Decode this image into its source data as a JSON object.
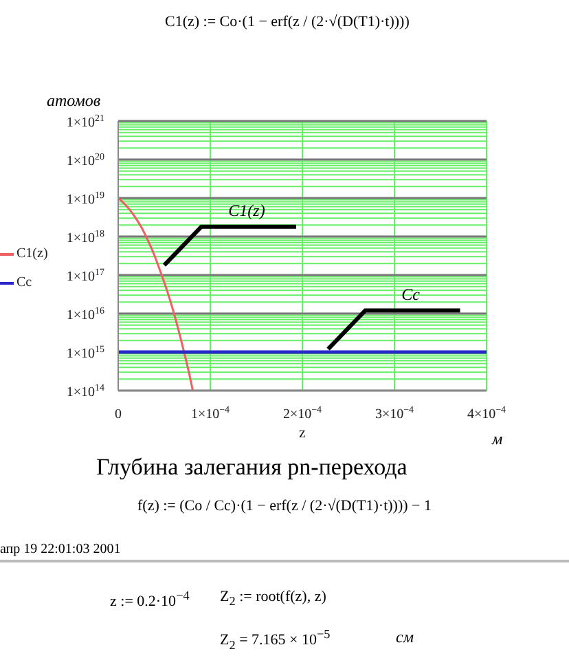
{
  "chart_data": {
    "type": "line",
    "title": "Глубина залегания pn-перехода",
    "xlabel": "z",
    "ylabel": "атомов",
    "annotations": [
      "C1(z) := Co·(1 − erf(z / (2·√(D(T1)·t))))",
      "м",
      "f(z) := (Co / Cc)·(1 − erf(z / (2·√(D(T1)·t)))) − 1",
      "апр 19 22:01:03 2001",
      "z := 0.2·10$^{−4}$",
      "Z$_{2}$ := root(f(z), z)",
      "Z$_{2}$ = 7.165 × 10$^{−5}$",
      "см",
      {
        "text": "C1(z)",
        "x": 5e-05,
        "y": 1.8e+17
      },
      {
        "text": "Cc",
        "x": 0.000228,
        "y": 1200000000000000.0
      }
    ],
    "series": [
      {
        "name": "C1(z)",
        "color": "#f06060",
        "x": [
          0,
          6.5e-06,
          1.3e-05,
          1.95e-05,
          2.6e-05,
          3.25e-05,
          3.9e-05,
          4.55e-05,
          5.2e-05,
          5.85e-05,
          6.5e-05,
          7.15e-05,
          7.8e-05,
          8.1e-05
        ],
        "values": [
          1e+19,
          7.2e+18,
          4.8e+18,
          2.9e+18,
          1.6e+18,
          7.7e+17,
          3.4e+17,
          1.3e+17,
          4.7e+16,
          1.5e+16,
          4100000000000000.0,
          1000000000000000.0,
          220000000000000.0,
          100000000000000.0
        ]
      },
      {
        "name": "Cc",
        "color": "#2828c8",
        "x": [
          0,
          0.0004
        ],
        "values": [
          1000000000000000.0,
          1000000000000000.0
        ]
      }
    ],
    "log": "y",
    "xlim": [
      0,
      0.0004
    ],
    "ylim": [
      100000000000000.0,
      1e+21
    ],
    "xticks": [
      0,
      {
        "value": 0.0001,
        "label": "1×10$^{−4}$"
      },
      {
        "value": 0.0002,
        "label": "2×10$^{−4}$"
      },
      {
        "value": 0.0003,
        "label": "3×10$^{−4}$"
      },
      {
        "value": 0.0004,
        "label": "4×10$^{−4}$"
      }
    ],
    "yticks": [
      {
        "value": 100000000000000.0,
        "label": "1×10$^{14}$"
      },
      {
        "value": 1000000000000000.0,
        "label": "1×10$^{15}$"
      },
      {
        "value": 1e+16,
        "label": "1×10$^{16}$"
      },
      {
        "value": 1e+17,
        "label": "1×10$^{17}$"
      },
      {
        "value": 1e+18,
        "label": "1×10$^{18}$"
      },
      {
        "value": 1e+19,
        "label": "1×10$^{19}$"
      },
      {
        "value": 1e+20,
        "label": "1×10$^{20}$"
      },
      {
        "value": 1e+21,
        "label": "1×10$^{21}$"
      }
    ],
    "grid": true,
    "legend": "left",
    "marker": "none",
    "line_style": "solid"
  }
}
